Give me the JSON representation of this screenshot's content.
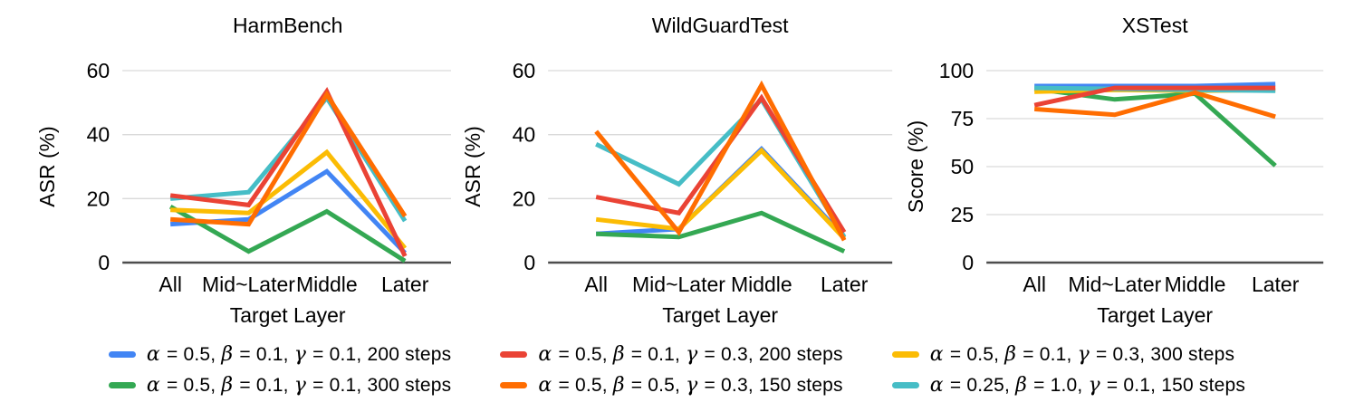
{
  "figure": {
    "background": "#ffffff",
    "gridline_color": "#d9d9d9",
    "zero_line_color": "#4d4d4d",
    "text_color": "#000000"
  },
  "palette": {
    "blue": "#4285F4",
    "green": "#34A853",
    "red": "#EA4335",
    "orange": "#FF6D01",
    "yellow": "#FBBC04",
    "teal": "#46BDC6"
  },
  "chart_data": [
    {
      "type": "line",
      "title": "HarmBench",
      "xlabel": "Target Layer",
      "ylabel": "ASR (%)",
      "categories": [
        "All",
        "Mid~Later",
        "Middle",
        "Later"
      ],
      "yticks": [
        0,
        20,
        40,
        60
      ],
      "ylim": [
        0,
        60
      ],
      "grid": true,
      "series": [
        {
          "name": "blue",
          "label": "α = 0.5, β = 0.1, γ = 0.1, 200 steps",
          "values": [
            12,
            13.5,
            28.5,
            3
          ]
        },
        {
          "name": "green",
          "label": "α = 0.5, β = 0.1, γ = 0.1, 300 steps",
          "values": [
            17.5,
            3.5,
            16,
            0.5
          ]
        },
        {
          "name": "red",
          "label": "α = 0.5, β = 0.1, γ = 0.3, 200 steps",
          "values": [
            21,
            18,
            53.5,
            2
          ]
        },
        {
          "name": "orange",
          "label": "α = 0.5, β = 0.5, γ = 0.3, 150 steps",
          "values": [
            13.5,
            12,
            52.5,
            14.5
          ]
        },
        {
          "name": "yellow",
          "label": "α = 0.5, β = 0.1, γ = 0.3, 300 steps",
          "values": [
            16.5,
            15.5,
            34.5,
            4.5
          ]
        },
        {
          "name": "teal",
          "label": "α = 0.25, β = 1.0, γ = 0.1, 150 steps",
          "values": [
            20,
            22,
            51.5,
            13
          ]
        }
      ]
    },
    {
      "type": "line",
      "title": "WildGuardTest",
      "xlabel": "Target Layer",
      "ylabel": "ASR (%)",
      "categories": [
        "All",
        "Mid~Later",
        "Middle",
        "Later"
      ],
      "yticks": [
        0,
        20,
        40,
        60
      ],
      "ylim": [
        0,
        60
      ],
      "grid": true,
      "series": [
        {
          "name": "blue",
          "label": "α = 0.5, β = 0.1, γ = 0.1, 200 steps",
          "values": [
            9,
            10.5,
            35.5,
            8
          ]
        },
        {
          "name": "green",
          "label": "α = 0.5, β = 0.1, γ = 0.1, 300 steps",
          "values": [
            9,
            8,
            15.5,
            3.5
          ]
        },
        {
          "name": "red",
          "label": "α = 0.5, β = 0.1, γ = 0.3, 200 steps",
          "values": [
            20.5,
            15.5,
            51.5,
            9.5
          ]
        },
        {
          "name": "orange",
          "label": "α = 0.5, β = 0.5, γ = 0.3, 150 steps",
          "values": [
            41,
            9.5,
            55.5,
            7
          ]
        },
        {
          "name": "yellow",
          "label": "α = 0.5, β = 0.1, γ = 0.3, 300 steps",
          "values": [
            13.5,
            10.5,
            35,
            7.5
          ]
        },
        {
          "name": "teal",
          "label": "α = 0.25, β = 1.0, γ = 0.1, 150 steps",
          "values": [
            37,
            24.5,
            51,
            8
          ]
        }
      ]
    },
    {
      "type": "line",
      "title": "XSTest",
      "xlabel": "Target Layer",
      "ylabel": "Score (%)",
      "categories": [
        "All",
        "Mid~Later",
        "Middle",
        "Later"
      ],
      "yticks": [
        0,
        25,
        50,
        75,
        100
      ],
      "ylim": [
        0,
        100
      ],
      "grid": true,
      "series": [
        {
          "name": "blue",
          "label": "α = 0.5, β = 0.1, γ = 0.1, 200 steps",
          "values": [
            92,
            92,
            92,
            93
          ]
        },
        {
          "name": "green",
          "label": "α = 0.5, β = 0.1, γ = 0.1, 300 steps",
          "values": [
            90.5,
            85,
            88,
            50.5
          ]
        },
        {
          "name": "red",
          "label": "α = 0.5, β = 0.1, γ = 0.3, 200 steps",
          "values": [
            82,
            91,
            91,
            91
          ]
        },
        {
          "name": "orange",
          "label": "α = 0.5, β = 0.5, γ = 0.3, 150 steps",
          "values": [
            80,
            77,
            88.5,
            76
          ]
        },
        {
          "name": "yellow",
          "label": "α = 0.5, β = 0.1, γ = 0.3, 300 steps",
          "values": [
            89,
            90,
            89.5,
            90
          ]
        },
        {
          "name": "teal",
          "label": "α = 0.25, β = 1.0, γ = 0.1, 150 steps",
          "values": [
            91,
            90.5,
            90,
            89.5
          ]
        }
      ]
    }
  ],
  "legend": {
    "position": "bottom",
    "columns": [
      [
        {
          "series": "blue",
          "label": "α = 0.5,  β = 0.1,  γ = 0.1, 200 steps"
        },
        {
          "series": "green",
          "label": "α = 0.5,  β = 0.1,  γ = 0.1, 300 steps"
        }
      ],
      [
        {
          "series": "red",
          "label": "α = 0.5,  β = 0.1,  γ = 0.3, 200 steps"
        },
        {
          "series": "orange",
          "label": "α = 0.5,  β = 0.5,  γ = 0.3, 150 steps"
        }
      ],
      [
        {
          "series": "yellow",
          "label": "α = 0.5,  β = 0.1,  γ = 0.3, 300 steps"
        },
        {
          "series": "teal",
          "label": "α = 0.25,  β = 1.0,  γ = 0.1, 150 steps"
        }
      ]
    ]
  }
}
